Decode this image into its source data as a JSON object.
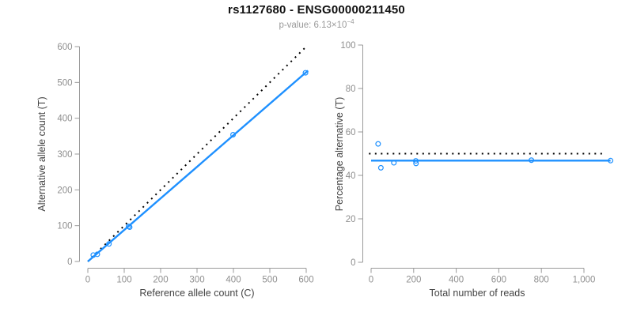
{
  "header": {
    "title": "rs1127680 - ENSG00000211450",
    "subtitle_base": "p-value: 6.13×10",
    "subtitle_exponent": "−4"
  },
  "colors": {
    "accent_blue": "#1E90FF",
    "reference_black": "#000000",
    "axis_gray": "#9a9a9a",
    "tick_label_gray": "#8f8f8f",
    "axis_title_gray": "#444444",
    "title_black": "#111111",
    "subtitle_gray": "#999999"
  },
  "chart_data": [
    {
      "type": "scatter",
      "panel": "left",
      "xlabel": "Reference allele count (C)",
      "ylabel": "Alternative allele count (T)",
      "xlim": [
        0,
        600
      ],
      "ylim": [
        0,
        600
      ],
      "xticks": [
        0,
        100,
        200,
        300,
        400,
        500,
        600
      ],
      "xtick_labels": [
        "0",
        "100",
        "200",
        "300",
        "400",
        "500",
        "600"
      ],
      "yticks": [
        0,
        100,
        200,
        300,
        400,
        500,
        600
      ],
      "ytick_labels": [
        "0",
        "100",
        "200",
        "300",
        "400",
        "500",
        "600"
      ],
      "grid": false,
      "points": [
        [
          15,
          18
        ],
        [
          26,
          20
        ],
        [
          58,
          49
        ],
        [
          112,
          98
        ],
        [
          115,
          96
        ],
        [
          399,
          354
        ],
        [
          598,
          527
        ]
      ],
      "lines": [
        {
          "name": "identity-line",
          "style": "dotted",
          "color": "reference_black",
          "from": [
            0,
            0
          ],
          "to": [
            600,
            600
          ]
        },
        {
          "name": "fit-line",
          "style": "solid",
          "color": "accent_blue",
          "from": [
            0,
            0
          ],
          "to": [
            605,
            533
          ]
        }
      ]
    },
    {
      "type": "scatter",
      "panel": "right",
      "xlabel": "Total number of reads",
      "ylabel": "Percentage alternative (T)",
      "xlim": [
        0,
        1000
      ],
      "ylim": [
        0,
        100
      ],
      "xticks": [
        0,
        200,
        400,
        600,
        800,
        1000
      ],
      "xtick_labels": [
        "0",
        "200",
        "400",
        "600",
        "800",
        "1,000"
      ],
      "yticks": [
        0,
        20,
        40,
        60,
        80,
        100
      ],
      "ytick_labels": [
        "0",
        "20",
        "40",
        "60",
        "80",
        "100"
      ],
      "grid": false,
      "points": [
        [
          33,
          54.5
        ],
        [
          46,
          43.5
        ],
        [
          107,
          45.8
        ],
        [
          210,
          46.7
        ],
        [
          211,
          45.5
        ],
        [
          753,
          47.0
        ],
        [
          1125,
          46.8
        ]
      ],
      "lines": [
        {
          "name": "expected-50pct-line",
          "style": "dotted",
          "color": "reference_black",
          "from": [
            -10,
            50
          ],
          "to": [
            1100,
            50
          ]
        },
        {
          "name": "fit-line",
          "style": "solid",
          "color": "accent_blue",
          "from": [
            0,
            46.8
          ],
          "to": [
            1125,
            46.8
          ]
        }
      ]
    }
  ]
}
